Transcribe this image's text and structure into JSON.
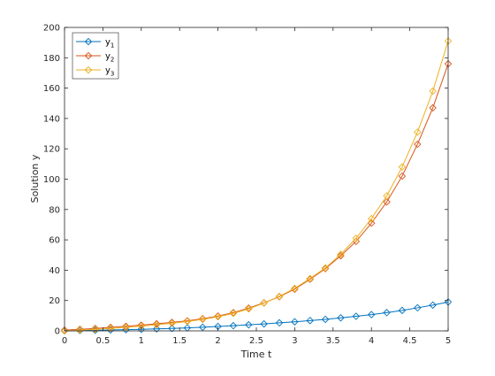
{
  "chart_data": {
    "type": "line",
    "title": "",
    "xlabel": "Time t",
    "ylabel": "Solution y",
    "xlim": [
      0,
      5
    ],
    "ylim": [
      0,
      200
    ],
    "xticks": [
      "0",
      "0.5",
      "1",
      "1.5",
      "2",
      "2.5",
      "3",
      "3.5",
      "4",
      "4.5",
      "5"
    ],
    "yticks": [
      "0",
      "20",
      "40",
      "60",
      "80",
      "100",
      "120",
      "140",
      "160",
      "180",
      "200"
    ],
    "grid": false,
    "legend_position": "top-left",
    "marker": "diamond",
    "x": [
      0,
      0.2,
      0.4,
      0.6,
      0.8,
      1.0,
      1.2,
      1.4,
      1.6,
      1.8,
      2.0,
      2.2,
      2.4,
      2.6,
      2.8,
      3.0,
      3.2,
      3.4,
      3.6,
      3.8,
      4.0,
      4.2,
      4.4,
      4.6,
      4.8,
      5.0
    ],
    "series": [
      {
        "name": "y",
        "subscript": "1",
        "color": "#0072BD",
        "values": [
          0.0,
          0.2,
          0.4,
          0.6,
          0.8,
          1.0,
          1.3,
          1.6,
          2.0,
          2.4,
          2.9,
          3.4,
          4.0,
          4.6,
          5.3,
          6.0,
          6.8,
          7.6,
          8.6,
          9.6,
          10.7,
          12.0,
          13.5,
          15.2,
          17.0,
          19.0
        ]
      },
      {
        "name": "y",
        "subscript": "2",
        "color": "#D95319",
        "values": [
          0.5,
          1.0,
          1.6,
          2.3,
          3.0,
          3.8,
          4.7,
          5.6,
          6.6,
          8.0,
          9.8,
          12.0,
          15.0,
          18.5,
          22.5,
          27.5,
          34.0,
          41.0,
          49.5,
          59.0,
          71.0,
          85.0,
          102.0,
          123.0,
          147.0,
          176.0
        ]
      },
      {
        "name": "y",
        "subscript": "3",
        "color": "#EDB120",
        "values": [
          0.0,
          0.5,
          1.0,
          1.6,
          2.3,
          3.1,
          4.0,
          5.0,
          6.2,
          7.6,
          9.3,
          11.5,
          14.5,
          18.3,
          22.8,
          28.0,
          34.5,
          41.5,
          50.5,
          61.0,
          74.0,
          89.0,
          108.0,
          131.0,
          158.0,
          191.0
        ]
      }
    ]
  }
}
